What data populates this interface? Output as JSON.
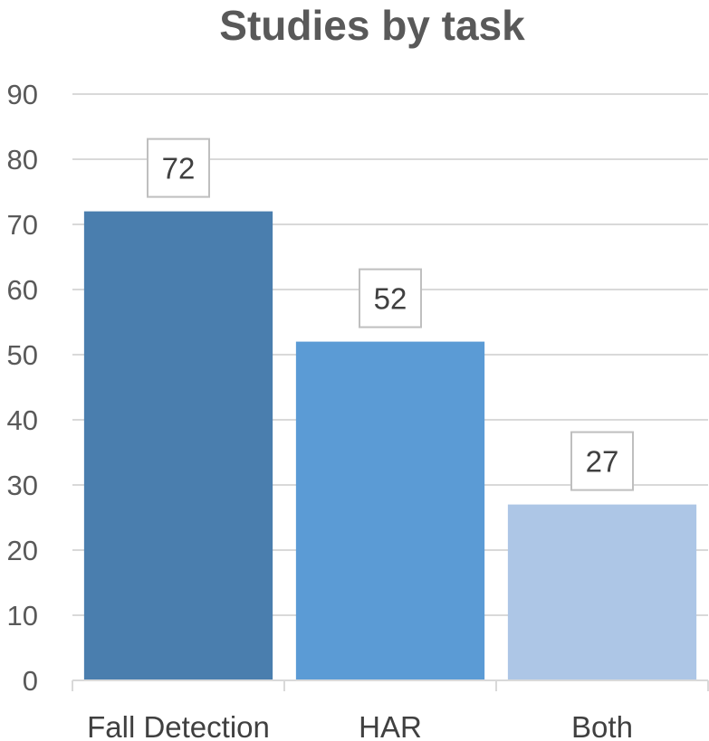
{
  "chart_data": {
    "type": "bar",
    "title": "Studies by task",
    "xlabel": "",
    "ylabel": "",
    "categories": [
      "Fall Detection",
      "HAR",
      "Both"
    ],
    "values": [
      72,
      52,
      27
    ],
    "ylim": [
      0,
      90
    ],
    "yticks": [
      0,
      10,
      20,
      30,
      40,
      50,
      60,
      70,
      80,
      90
    ],
    "grid": true,
    "legend": "none",
    "data_labels": true,
    "colors": [
      "#4a7eae",
      "#5b9bd5",
      "#adc6e6"
    ],
    "grid_color": "#d9d9d9",
    "text_color": "#595959"
  }
}
